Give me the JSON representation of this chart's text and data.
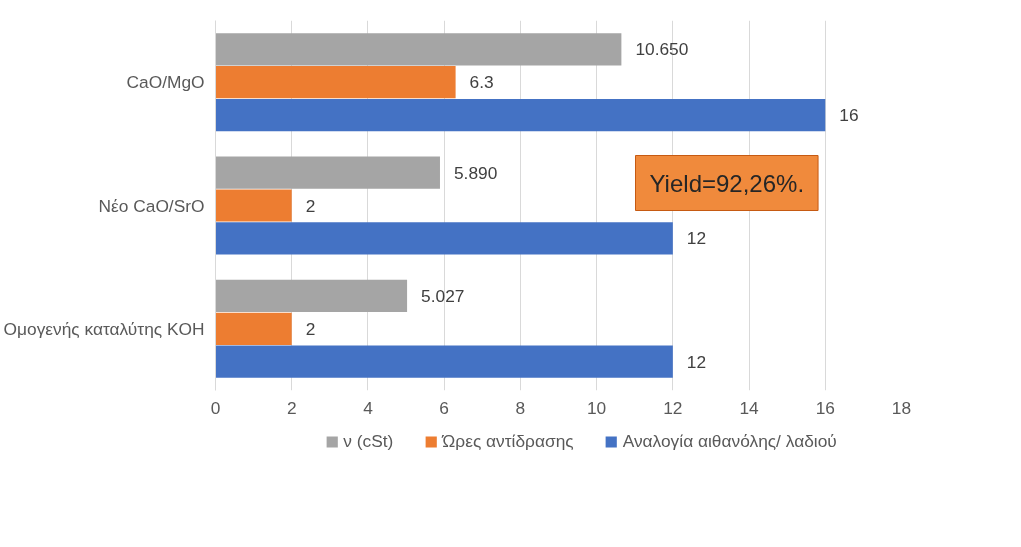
{
  "chart_data": {
    "type": "bar",
    "orientation": "horizontal",
    "categories": [
      "CaO/MgO",
      "Νέο CaO/SrO",
      "Ομογενής καταλύτης KOH"
    ],
    "series": [
      {
        "name": "ν (cSt)",
        "color": "#a5a5a5",
        "values": [
          10.65,
          5.89,
          5.027
        ],
        "value_labels": [
          "10.650",
          "5.890",
          "5.027"
        ]
      },
      {
        "name": "Ώρες αντίδρασης",
        "color": "#ed7d31",
        "values": [
          6.3,
          2,
          2
        ],
        "value_labels": [
          "6.3",
          "2",
          "2"
        ]
      },
      {
        "name": "Αναλογία αιθανόλης/ λαδιού",
        "color": "#4472c4",
        "values": [
          16,
          12,
          12
        ],
        "value_labels": [
          "16",
          "12",
          "12"
        ]
      }
    ],
    "xlim": [
      0,
      18
    ],
    "xticks": [
      0,
      2,
      4,
      6,
      8,
      10,
      12,
      14,
      16,
      18
    ],
    "grid": "x",
    "legend": "bottom",
    "annotations": [
      "Yield=92,26%."
    ]
  }
}
